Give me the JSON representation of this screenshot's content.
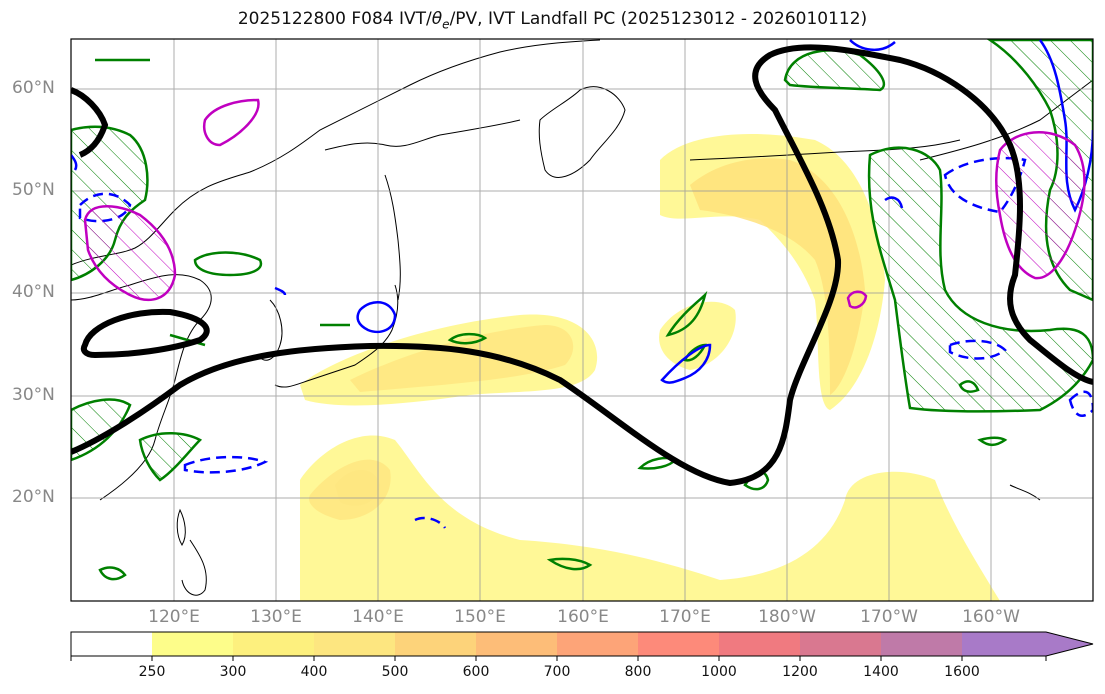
{
  "title": "2025122800 F084 IVT/θe/PV, IVT Landfall PC (2025123012 - 2026010112)",
  "title_parts": {
    "prefix": "2025122800 F084 IVT/",
    "theta": "θ",
    "sub": "e",
    "suffix": "/PV, IVT Landfall PC (2025123012 - 2026010112)"
  },
  "lat_labels": [
    "60°N",
    "50°N",
    "40°N",
    "30°N",
    "20°N"
  ],
  "lon_labels": [
    "120°E",
    "130°E",
    "140°E",
    "150°E",
    "160°E",
    "170°E",
    "180°W",
    "170°W",
    "160°W"
  ],
  "colorbar": {
    "ticks": [
      "250",
      "300",
      "400",
      "500",
      "600",
      "700",
      "800",
      "1000",
      "1200",
      "1400",
      "1600"
    ],
    "colors": [
      "#ffffff",
      "#fdfd8a",
      "#fdf07e",
      "#fde680",
      "#fdd37a",
      "#fdbd78",
      "#fda478",
      "#fd8a7a",
      "#f07a80",
      "#d97890",
      "#bf7aa8",
      "#a87ac8"
    ]
  },
  "colors": {
    "ivt_contour": "#000000",
    "theta_e": "#008000",
    "pv_positive": "#0000ff",
    "pv_negative": "#0000ff",
    "magenta_contour": "#c000c0",
    "ivt_fill_light": "#fff78c",
    "ivt_fill_mid": "#ffe27a"
  }
}
